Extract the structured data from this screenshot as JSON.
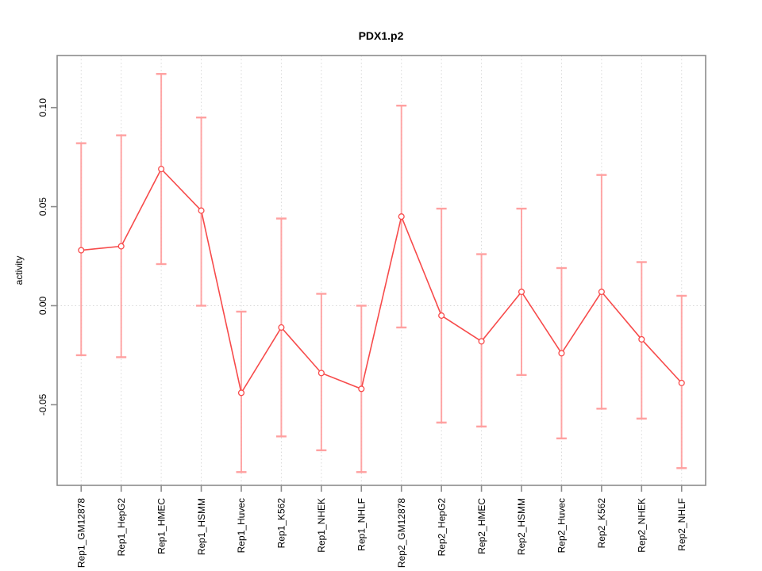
{
  "chart_data": {
    "type": "line",
    "title": "PDX1.p2",
    "ylabel": "activity",
    "xlabel": "",
    "categories": [
      "Rep1_GM12878",
      "Rep1_HepG2",
      "Rep1_HMEC",
      "Rep1_HSMM",
      "Rep1_Huvec",
      "Rep1_K562",
      "Rep1_NHEK",
      "Rep1_NHLF",
      "Rep2_GM12878",
      "Rep2_HepG2",
      "Rep2_HMEC",
      "Rep2_HSMM",
      "Rep2_Huvec",
      "Rep2_K562",
      "Rep2_NHEK",
      "Rep2_NHLF"
    ],
    "series": [
      {
        "name": "activity",
        "values": [
          0.028,
          0.03,
          0.069,
          0.048,
          -0.044,
          -0.011,
          -0.034,
          -0.042,
          0.045,
          -0.005,
          -0.018,
          0.007,
          -0.024,
          0.007,
          -0.017,
          -0.039
        ],
        "ci_low": [
          -0.025,
          -0.026,
          0.021,
          0.0,
          -0.084,
          -0.066,
          -0.073,
          -0.084,
          -0.011,
          -0.059,
          -0.061,
          -0.035,
          -0.067,
          -0.052,
          -0.057,
          -0.082
        ],
        "ci_high": [
          0.082,
          0.086,
          0.117,
          0.095,
          -0.003,
          0.044,
          0.006,
          0.0,
          0.101,
          0.049,
          0.026,
          0.049,
          0.019,
          0.066,
          0.022,
          0.005
        ]
      }
    ],
    "marker": "open-circle",
    "error_bars": true,
    "yticks": [
      -0.05,
      0.0,
      0.05,
      0.1
    ],
    "ytick_labels": [
      "-0.05",
      "0.00",
      "0.05",
      "0.10"
    ],
    "ylim": [
      -0.0907,
      0.1263
    ],
    "xlim": [
      0.4,
      16.6
    ],
    "grid": {
      "vertical_dotted_per_category": true,
      "dotted_zero_line": true,
      "legend": "none"
    },
    "colors": {
      "line": "#f74b4b",
      "marker": "#f74b4b",
      "marker_fill": "#ffffff",
      "error_bar": "#ff9c9c",
      "axis_box": "#8c8c8c",
      "gridline": "#d8d8d8",
      "text": "#000000",
      "background": "#ffffff"
    }
  }
}
